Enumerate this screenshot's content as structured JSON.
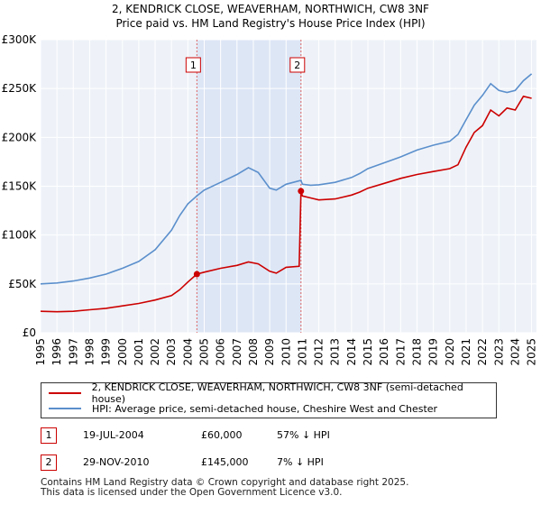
{
  "chart_data": {
    "type": "line",
    "title": "2, KENDRICK CLOSE, WEAVERHAM, NORTHWICH, CW8 3NF",
    "subtitle": "Price paid vs. HM Land Registry's House Price Index (HPI)",
    "xlabel": "",
    "ylabel": "",
    "xlim": [
      1995,
      2025.3
    ],
    "ylim": [
      0,
      300000
    ],
    "grid": true,
    "y_ticks": [
      0,
      50000,
      100000,
      150000,
      200000,
      250000,
      300000
    ],
    "y_tick_labels": [
      "£0",
      "£50K",
      "£100K",
      "£150K",
      "£200K",
      "£250K",
      "£300K"
    ],
    "x_ticks": [
      1995,
      1996,
      1997,
      1998,
      1999,
      2000,
      2001,
      2002,
      2003,
      2004,
      2005,
      2006,
      2007,
      2008,
      2009,
      2010,
      2011,
      2012,
      2013,
      2014,
      2015,
      2016,
      2017,
      2018,
      2019,
      2020,
      2021,
      2022,
      2023,
      2024,
      2025
    ],
    "shaded_region": [
      2004.55,
      2010.91
    ],
    "series": [
      {
        "name": "2, KENDRICK CLOSE, WEAVERHAM, NORTHWICH, CW8 3NF (semi-detached house)",
        "color": "#cc0000",
        "x": [
          1995,
          1996,
          1997,
          1998,
          1999,
          2000,
          2001,
          2002,
          2003,
          2003.5,
          2004,
          2004.55,
          2005,
          2006,
          2007,
          2007.7,
          2008.3,
          2009,
          2009.4,
          2010,
          2010.8,
          2010.91,
          2011,
          2011.5,
          2012,
          2013,
          2014,
          2014.5,
          2015,
          2016,
          2017,
          2018,
          2019,
          2020,
          2020.5,
          2021,
          2021.5,
          2022,
          2022.5,
          2023,
          2023.5,
          2024,
          2024.5,
          2025
        ],
        "y": [
          22000,
          21500,
          22000,
          23500,
          25000,
          27500,
          30000,
          33500,
          38000,
          44000,
          52000,
          60000,
          62000,
          66000,
          69000,
          72500,
          70500,
          63000,
          61000,
          67000,
          68000,
          145000,
          140000,
          138000,
          136000,
          137000,
          141000,
          144000,
          148000,
          153000,
          158000,
          162000,
          165000,
          168000,
          172000,
          190000,
          205000,
          212000,
          228000,
          222000,
          230000,
          228000,
          242000,
          240000
        ]
      },
      {
        "name": "HPI: Average price, semi-detached house, Cheshire West and Chester",
        "color": "#5b8fcc",
        "x": [
          1995,
          1996,
          1997,
          1998,
          1999,
          2000,
          2001,
          2002,
          2003,
          2003.5,
          2004,
          2004.55,
          2005,
          2006,
          2007,
          2007.7,
          2008.3,
          2009,
          2009.4,
          2010,
          2010.91,
          2011,
          2011.5,
          2012,
          2013,
          2014,
          2014.5,
          2015,
          2016,
          2017,
          2018,
          2019,
          2020,
          2020.5,
          2021,
          2021.5,
          2022,
          2022.5,
          2023,
          2023.5,
          2024,
          2024.5,
          2025
        ],
        "y": [
          50000,
          51000,
          53000,
          56000,
          60000,
          66000,
          73000,
          85000,
          105000,
          120000,
          132000,
          140000,
          146000,
          154000,
          162000,
          169000,
          164000,
          148000,
          146000,
          152000,
          156000,
          152000,
          151000,
          151500,
          154000,
          159000,
          163000,
          168000,
          174000,
          180000,
          187000,
          192000,
          196000,
          203000,
          218000,
          233000,
          243000,
          255000,
          248000,
          246000,
          248000,
          258000,
          265000
        ]
      }
    ],
    "annotations": [
      {
        "label": "1",
        "x": 2004.55
      },
      {
        "label": "2",
        "x": 2010.91
      }
    ],
    "sale_points": [
      {
        "x": 2004.55,
        "y": 60000
      },
      {
        "x": 2010.91,
        "y": 145000
      }
    ]
  },
  "legend": {
    "property_label": "2, KENDRICK CLOSE, WEAVERHAM, NORTHWICH, CW8 3NF (semi-detached house)",
    "hpi_label": "HPI: Average price, semi-detached house, Cheshire West and Chester",
    "property_color": "#cc0000",
    "hpi_color": "#5b8fcc"
  },
  "sales": [
    {
      "num": "1",
      "date": "19-JUL-2004",
      "price": "£60,000",
      "hpi": "57% ↓ HPI"
    },
    {
      "num": "2",
      "date": "29-NOV-2010",
      "price": "£145,000",
      "hpi": "7% ↓ HPI"
    }
  ],
  "footer": {
    "line1": "Contains HM Land Registry data © Crown copyright and database right 2025.",
    "line2": "This data is licensed under the Open Government Licence v3.0."
  }
}
